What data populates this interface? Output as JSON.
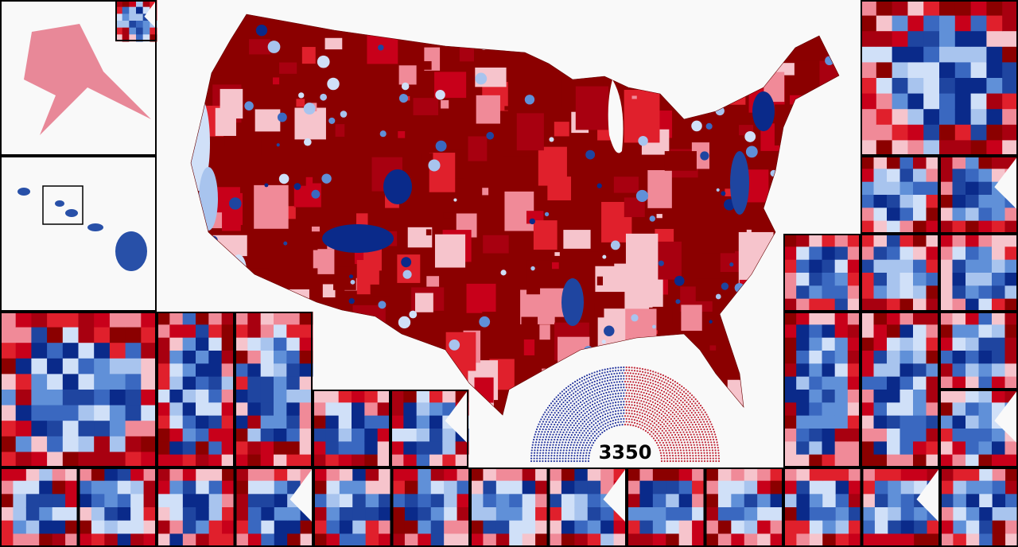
{
  "seat_total": "3350"
}
